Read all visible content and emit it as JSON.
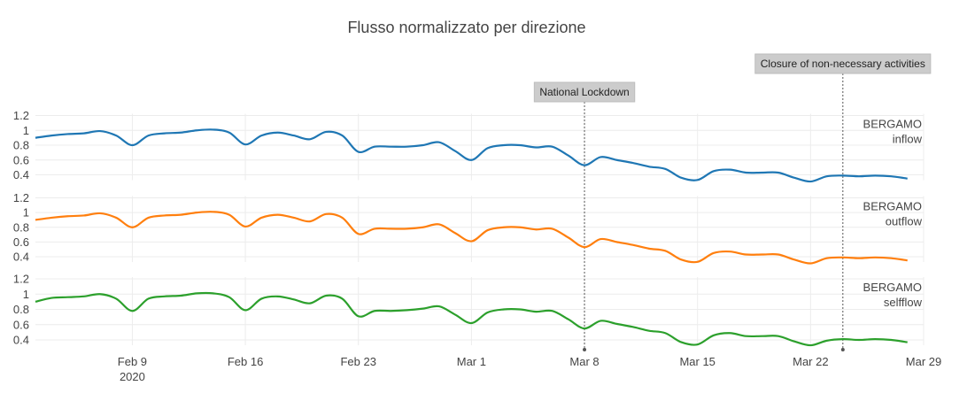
{
  "chart_data": {
    "type": "line",
    "title": "Flusso normalizzato per direzione",
    "x_ticks": [
      {
        "date": "2020-02-09",
        "label": "Feb 9",
        "sublabel": "2020"
      },
      {
        "date": "2020-02-16",
        "label": "Feb 16"
      },
      {
        "date": "2020-02-23",
        "label": "Feb 23"
      },
      {
        "date": "2020-03-01",
        "label": "Mar 1"
      },
      {
        "date": "2020-03-08",
        "label": "Mar 8"
      },
      {
        "date": "2020-03-15",
        "label": "Mar 15"
      },
      {
        "date": "2020-03-22",
        "label": "Mar 22"
      },
      {
        "date": "2020-03-29",
        "label": "Mar 29"
      }
    ],
    "xlim": [
      "2020-02-03",
      "2020-03-29"
    ],
    "y_ticks": [
      "0.4",
      "0.6",
      "0.8",
      "1",
      "1.2"
    ],
    "ylim": [
      0.3,
      1.2
    ],
    "grid": true,
    "dates": [
      "2020-02-03",
      "2020-02-04",
      "2020-02-05",
      "2020-02-06",
      "2020-02-07",
      "2020-02-08",
      "2020-02-09",
      "2020-02-10",
      "2020-02-11",
      "2020-02-12",
      "2020-02-13",
      "2020-02-14",
      "2020-02-15",
      "2020-02-16",
      "2020-02-17",
      "2020-02-18",
      "2020-02-19",
      "2020-02-20",
      "2020-02-21",
      "2020-02-22",
      "2020-02-23",
      "2020-02-24",
      "2020-02-25",
      "2020-02-26",
      "2020-02-27",
      "2020-02-28",
      "2020-02-29",
      "2020-03-01",
      "2020-03-02",
      "2020-03-03",
      "2020-03-04",
      "2020-03-05",
      "2020-03-06",
      "2020-03-07",
      "2020-03-08",
      "2020-03-09",
      "2020-03-10",
      "2020-03-11",
      "2020-03-12",
      "2020-03-13",
      "2020-03-14",
      "2020-03-15",
      "2020-03-16",
      "2020-03-17",
      "2020-03-18",
      "2020-03-19",
      "2020-03-20",
      "2020-03-21",
      "2020-03-22",
      "2020-03-23",
      "2020-03-24",
      "2020-03-25",
      "2020-03-26",
      "2020-03-27",
      "2020-03-28"
    ],
    "series": [
      {
        "name": "BERGAMO inflow",
        "color": "#1f77b4",
        "values": [
          0.9,
          0.93,
          0.95,
          0.96,
          0.99,
          0.93,
          0.8,
          0.93,
          0.96,
          0.97,
          1.0,
          1.01,
          0.97,
          0.81,
          0.93,
          0.97,
          0.93,
          0.88,
          0.98,
          0.93,
          0.71,
          0.78,
          0.78,
          0.78,
          0.8,
          0.84,
          0.72,
          0.6,
          0.76,
          0.8,
          0.8,
          0.77,
          0.78,
          0.66,
          0.53,
          0.64,
          0.6,
          0.56,
          0.51,
          0.48,
          0.36,
          0.33,
          0.45,
          0.47,
          0.43,
          0.43,
          0.43,
          0.36,
          0.31,
          0.38,
          0.39,
          0.38,
          0.39,
          0.38,
          0.35
        ]
      },
      {
        "name": "BERGAMO outflow",
        "color": "#ff7f0e",
        "values": [
          0.9,
          0.93,
          0.95,
          0.96,
          0.99,
          0.93,
          0.8,
          0.93,
          0.96,
          0.97,
          1.0,
          1.01,
          0.97,
          0.81,
          0.93,
          0.97,
          0.93,
          0.88,
          0.98,
          0.93,
          0.71,
          0.78,
          0.78,
          0.78,
          0.8,
          0.84,
          0.72,
          0.61,
          0.76,
          0.8,
          0.8,
          0.77,
          0.78,
          0.66,
          0.53,
          0.64,
          0.6,
          0.56,
          0.51,
          0.48,
          0.36,
          0.33,
          0.45,
          0.47,
          0.43,
          0.43,
          0.43,
          0.36,
          0.31,
          0.38,
          0.39,
          0.38,
          0.39,
          0.38,
          0.35
        ]
      },
      {
        "name": "BERGAMO selfflow",
        "color": "#2ca02c",
        "values": [
          0.9,
          0.95,
          0.96,
          0.97,
          1.0,
          0.94,
          0.78,
          0.94,
          0.97,
          0.98,
          1.01,
          1.01,
          0.96,
          0.79,
          0.94,
          0.97,
          0.93,
          0.88,
          0.98,
          0.94,
          0.71,
          0.78,
          0.78,
          0.79,
          0.81,
          0.84,
          0.73,
          0.62,
          0.76,
          0.8,
          0.8,
          0.77,
          0.78,
          0.67,
          0.55,
          0.65,
          0.61,
          0.57,
          0.52,
          0.49,
          0.37,
          0.34,
          0.46,
          0.49,
          0.45,
          0.45,
          0.45,
          0.38,
          0.33,
          0.39,
          0.41,
          0.4,
          0.41,
          0.4,
          0.37
        ]
      }
    ],
    "panel_labels": [
      [
        "BERGAMO",
        "inflow"
      ],
      [
        "BERGAMO",
        "outflow"
      ],
      [
        "BERGAMO",
        "selfflow"
      ]
    ],
    "annotations": [
      {
        "date": "2020-03-08",
        "text": "National Lockdown"
      },
      {
        "date": "2020-03-24",
        "text": "Closure of non-necessary activities"
      }
    ]
  }
}
